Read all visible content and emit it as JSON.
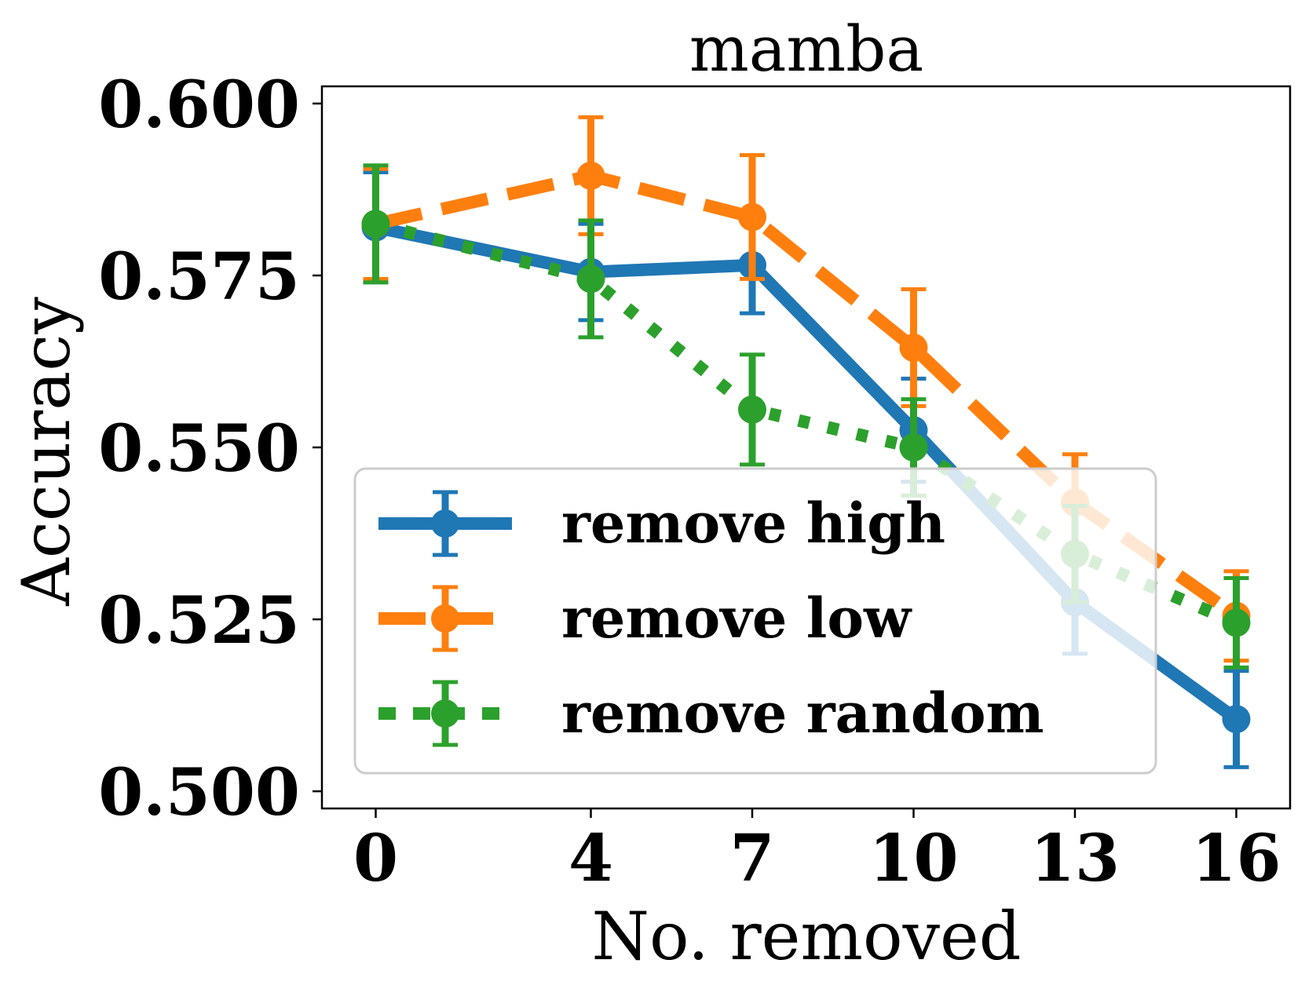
{
  "chart_data": {
    "type": "line",
    "title": "mamba",
    "xlabel": "No. removed",
    "ylabel": "Accuracy",
    "x": [
      0,
      4,
      7,
      10,
      13,
      16
    ],
    "x_tick_labels": [
      "0",
      "4",
      "7",
      "10",
      "13",
      "16"
    ],
    "y_ticks": [
      0.5,
      0.525,
      0.55,
      0.575,
      0.6
    ],
    "y_tick_labels": [
      "0.500",
      "0.525",
      "0.550",
      "0.575",
      "0.600"
    ],
    "xlim": [
      -1,
      17
    ],
    "ylim": [
      0.4975,
      0.6025
    ],
    "error_bars": true,
    "legend_position": "lower-left",
    "series": [
      {
        "name": "remove high",
        "color": "#1f77b4",
        "linestyle": "solid",
        "values": [
          0.582,
          0.5755,
          0.5765,
          0.5525,
          0.5275,
          0.5105
        ],
        "errors": [
          0.008,
          0.007,
          0.007,
          0.0075,
          0.0075,
          0.007
        ]
      },
      {
        "name": "remove low",
        "color": "#ff7f0e",
        "linestyle": "dashed",
        "values": [
          0.5825,
          0.5895,
          0.5835,
          0.5645,
          0.542,
          0.5255
        ],
        "errors": [
          0.008,
          0.0085,
          0.009,
          0.0085,
          0.007,
          0.0065
        ]
      },
      {
        "name": "remove random",
        "color": "#2ca02c",
        "linestyle": "dotted",
        "values": [
          0.5825,
          0.5745,
          0.5555,
          0.55,
          0.5345,
          0.5245
        ],
        "errors": [
          0.0085,
          0.0085,
          0.008,
          0.007,
          0.007,
          0.0065
        ]
      }
    ]
  }
}
